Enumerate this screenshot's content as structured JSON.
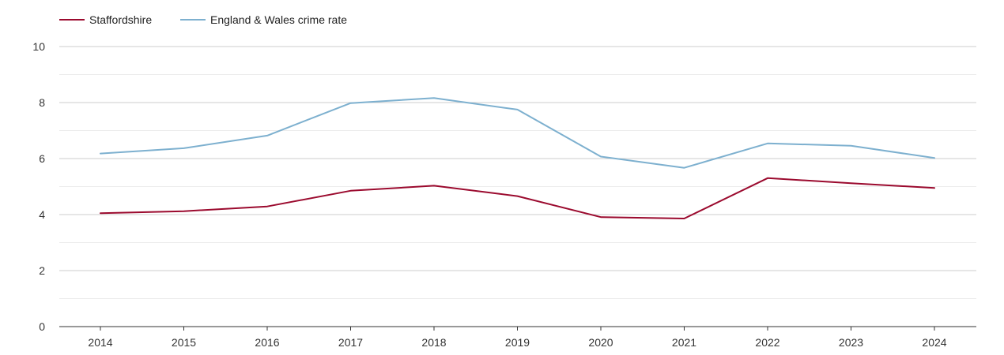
{
  "chart_data": {
    "type": "line",
    "title": "",
    "xlabel": "",
    "ylabel": "",
    "x": [
      "2014",
      "2015",
      "2016",
      "2017",
      "2018",
      "2019",
      "2020",
      "2021",
      "2022",
      "2023",
      "2024"
    ],
    "ylim": [
      0,
      10
    ],
    "y_ticks": [
      "0",
      "2",
      "4",
      "6",
      "8",
      "10"
    ],
    "grid": true,
    "legend_position": "top-left",
    "series": [
      {
        "name": "Staffordshire",
        "color": "#9b0a2e",
        "values": [
          4.05,
          4.12,
          4.29,
          4.85,
          5.03,
          4.66,
          3.91,
          3.86,
          5.3,
          5.12,
          4.95
        ]
      },
      {
        "name": "England & Wales crime rate",
        "color": "#7db0cf",
        "values": [
          6.18,
          6.37,
          6.82,
          7.98,
          8.16,
          7.75,
          6.07,
          5.67,
          6.54,
          6.46,
          6.02
        ]
      }
    ]
  }
}
